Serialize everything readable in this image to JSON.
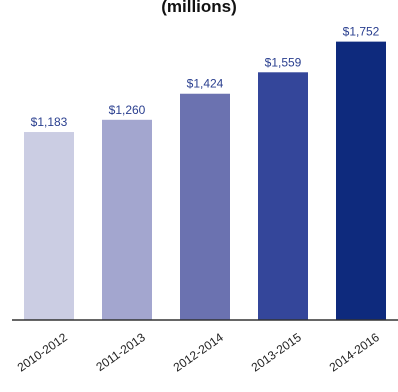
{
  "chart_data": {
    "type": "bar",
    "title": "(millions)",
    "categories": [
      "2010-2012",
      "2011-2013",
      "2012-2014",
      "2013-2015",
      "2014-2016"
    ],
    "values": [
      1183,
      1260,
      1424,
      1559,
      1752
    ],
    "value_labels": [
      "$1,183",
      "$1,260",
      "$1,424",
      "$1,559",
      "$1,752"
    ],
    "colors": [
      "#cbcde3",
      "#a3a6cf",
      "#6b72b0",
      "#34469a",
      "#0e2a7d"
    ],
    "label_color": "#2a3f8f",
    "ylim": [
      0,
      1800
    ],
    "xlabel": "",
    "ylabel": "",
    "grid": false
  }
}
